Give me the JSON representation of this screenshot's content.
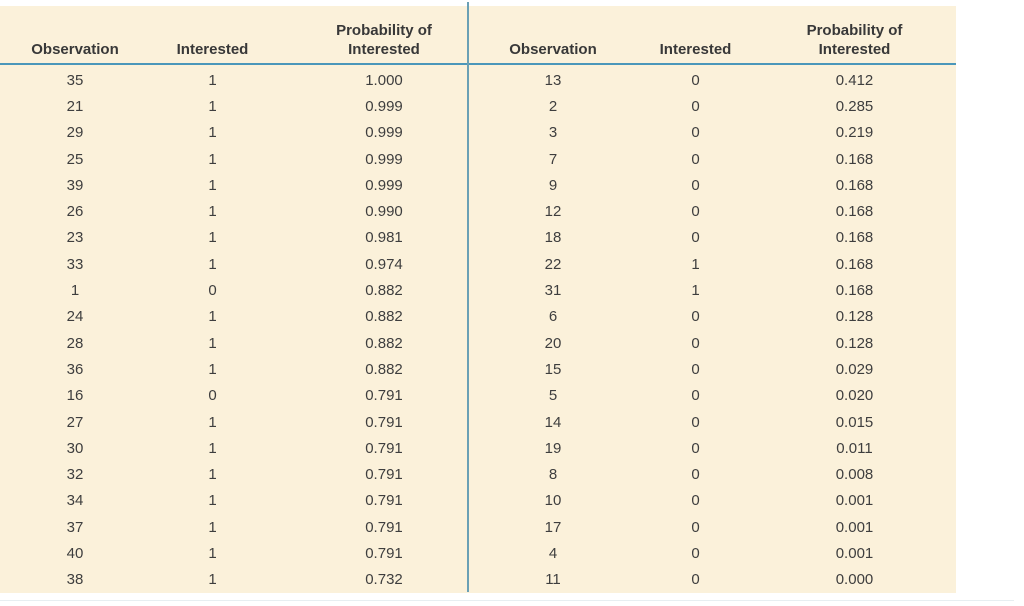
{
  "colors": {
    "panel_bg": "#fbf1da",
    "rule": "#4b97ba",
    "divider": "#6aa0b5",
    "text": "#3e3e3e"
  },
  "left_table": {
    "headers": {
      "observation": "Observation",
      "interested": "Interested",
      "probability_line1": "Probability of",
      "probability_line2": "Interested"
    },
    "rows": [
      [
        "35",
        "1",
        "1.000"
      ],
      [
        "21",
        "1",
        "0.999"
      ],
      [
        "29",
        "1",
        "0.999"
      ],
      [
        "25",
        "1",
        "0.999"
      ],
      [
        "39",
        "1",
        "0.999"
      ],
      [
        "26",
        "1",
        "0.990"
      ],
      [
        "23",
        "1",
        "0.981"
      ],
      [
        "33",
        "1",
        "0.974"
      ],
      [
        "1",
        "0",
        "0.882"
      ],
      [
        "24",
        "1",
        "0.882"
      ],
      [
        "28",
        "1",
        "0.882"
      ],
      [
        "36",
        "1",
        "0.882"
      ],
      [
        "16",
        "0",
        "0.791"
      ],
      [
        "27",
        "1",
        "0.791"
      ],
      [
        "30",
        "1",
        "0.791"
      ],
      [
        "32",
        "1",
        "0.791"
      ],
      [
        "34",
        "1",
        "0.791"
      ],
      [
        "37",
        "1",
        "0.791"
      ],
      [
        "40",
        "1",
        "0.791"
      ],
      [
        "38",
        "1",
        "0.732"
      ]
    ]
  },
  "right_table": {
    "headers": {
      "observation": "Observation",
      "interested": "Interested",
      "probability_line1": "Probability of",
      "probability_line2": "Interested"
    },
    "rows": [
      [
        "13",
        "0",
        "0.412"
      ],
      [
        "2",
        "0",
        "0.285"
      ],
      [
        "3",
        "0",
        "0.219"
      ],
      [
        "7",
        "0",
        "0.168"
      ],
      [
        "9",
        "0",
        "0.168"
      ],
      [
        "12",
        "0",
        "0.168"
      ],
      [
        "18",
        "0",
        "0.168"
      ],
      [
        "22",
        "1",
        "0.168"
      ],
      [
        "31",
        "1",
        "0.168"
      ],
      [
        "6",
        "0",
        "0.128"
      ],
      [
        "20",
        "0",
        "0.128"
      ],
      [
        "15",
        "0",
        "0.029"
      ],
      [
        "5",
        "0",
        "0.020"
      ],
      [
        "14",
        "0",
        "0.015"
      ],
      [
        "19",
        "0",
        "0.011"
      ],
      [
        "8",
        "0",
        "0.008"
      ],
      [
        "10",
        "0",
        "0.001"
      ],
      [
        "17",
        "0",
        "0.001"
      ],
      [
        "4",
        "0",
        "0.001"
      ],
      [
        "11",
        "0",
        "0.000"
      ]
    ]
  }
}
